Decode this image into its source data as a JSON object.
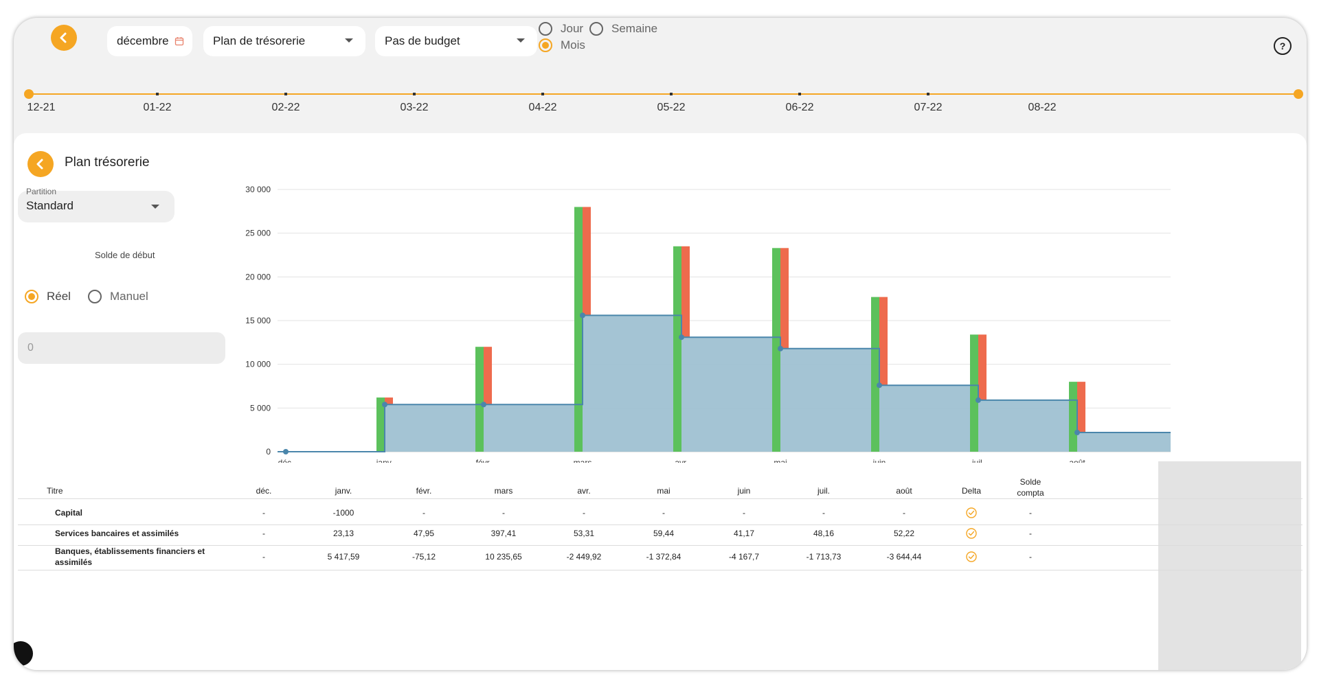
{
  "toolbar": {
    "date_value": "décembre 2",
    "plan_select": "Plan de trésorerie",
    "budget_select": "Pas de budget",
    "period_options": [
      "Jour",
      "Semaine",
      "Mois"
    ],
    "period_selected": "Mois",
    "help": "?"
  },
  "timeline": {
    "labels": [
      "12-21",
      "01-22",
      "02-22",
      "03-22",
      "04-22",
      "05-22",
      "06-22",
      "07-22",
      "08-22"
    ]
  },
  "panel": {
    "title": "Plan trésorerie",
    "partition_label": "Partition",
    "partition_value": "Standard",
    "solde_label": "Solde de début",
    "solde_options": [
      "Réel",
      "Manuel"
    ],
    "solde_selected": "Réel",
    "manual_value": "0"
  },
  "chart_data": {
    "type": "bar",
    "categories": [
      "déc.",
      "janv.",
      "févr.",
      "mars",
      "avr.",
      "mai",
      "juin",
      "juil.",
      "août"
    ],
    "ylim": [
      0,
      30000
    ],
    "yticks": [
      0,
      5000,
      10000,
      15000,
      20000,
      25000,
      30000
    ],
    "ytick_labels": [
      "0",
      "5 000",
      "10 000",
      "15 000",
      "20 000",
      "25 000",
      "30 000"
    ],
    "series": [
      {
        "values": [
          0,
          6200,
          12000,
          28000,
          23500,
          23300,
          17700,
          13400,
          8000
        ],
        "color": "#5cc15c"
      },
      {
        "values": [
          0,
          6200,
          12000,
          28000,
          23500,
          23300,
          17700,
          13400,
          8000
        ],
        "color": "#ee6b4d"
      },
      {
        "values": [
          0,
          5400,
          5400,
          15600,
          13100,
          11800,
          7600,
          5900,
          2200
        ],
        "color": "#9fc1d2",
        "line_color": "#4a86ab"
      }
    ],
    "grid": true,
    "legend": "none"
  },
  "table": {
    "headers": [
      "Titre",
      "déc.",
      "janv.",
      "févr.",
      "mars",
      "avr.",
      "mai",
      "juin",
      "juil.",
      "août",
      "Delta",
      "Solde compta"
    ],
    "rows": [
      {
        "title": "Capital",
        "values": [
          "-",
          "-1000",
          "-",
          "-",
          "-",
          "-",
          "-",
          "-",
          "-"
        ],
        "solde": "-"
      },
      {
        "title": "Services bancaires et assimilés",
        "values": [
          "-",
          "23,13",
          "47,95",
          "397,41",
          "53,31",
          "59,44",
          "41,17",
          "48,16",
          "52,22"
        ],
        "solde": "-"
      },
      {
        "title_line1": "Banques, établissements financiers et",
        "title_line2": "assimilés",
        "values": [
          "-",
          "5 417,59",
          "-75,12",
          "10 235,65",
          "-2 449,92",
          "-1 372,84",
          "-4 167,7",
          "-1 713,73",
          "-3 644,44"
        ],
        "solde": "-"
      }
    ]
  },
  "colors": {
    "accent": "#f5a623",
    "green": "#5cc15c",
    "red": "#ee6b4d",
    "area": "#9fc1d2",
    "line": "#4a86ab"
  }
}
